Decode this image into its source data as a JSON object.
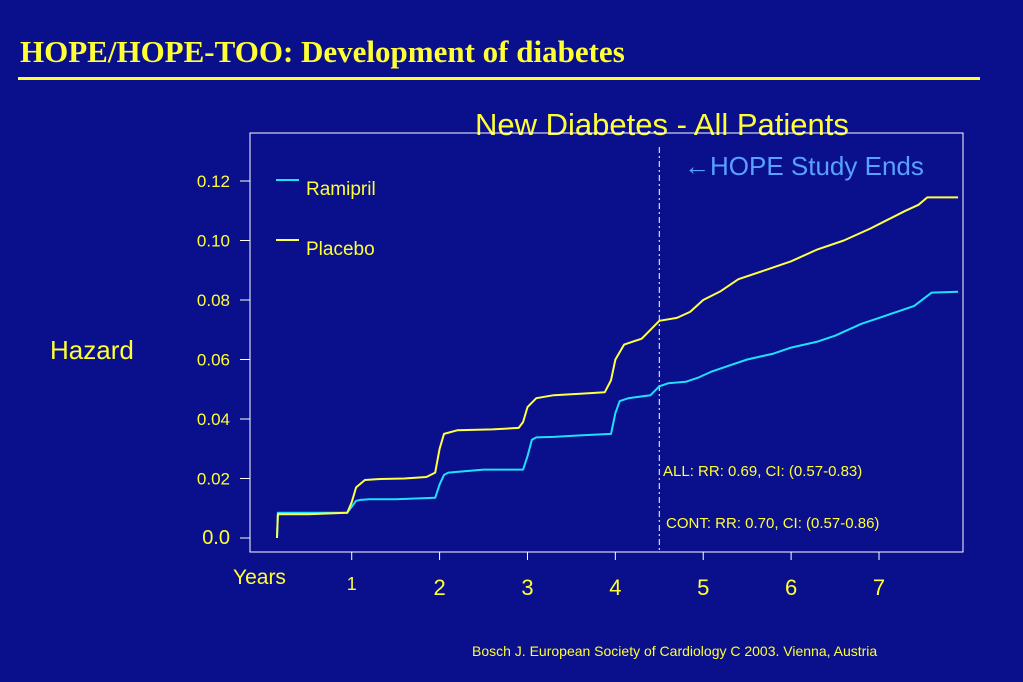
{
  "slide": {
    "title": "HOPE/HOPE-TOO: Development of diabetes",
    "source": "Bosch J. European Society of Cardiology C 2003.  Vienna, Austria",
    "title_color": "#ffff33",
    "background": "#0a0f8c"
  },
  "chart_data": {
    "type": "line",
    "title": "New Diabetes - All Patients",
    "ylabel": "Hazard",
    "xlabel": "Years",
    "xlim": [
      0,
      8
    ],
    "ylim": [
      0,
      0.137
    ],
    "x_ticks": [
      1,
      2,
      3,
      4,
      5,
      6,
      7
    ],
    "x_tick_labels": [
      "1",
      "2",
      "3",
      "4",
      "5",
      "6",
      "7"
    ],
    "y_ticks": [
      0,
      0.02,
      0.04,
      0.06,
      0.08,
      0.1,
      0.12
    ],
    "y_tick_labels": [
      "0.0",
      "0.02",
      "0.04",
      "0.06",
      "0.08",
      "0.10",
      "0.12"
    ],
    "grid": false,
    "legend_position": "top-left",
    "annotation_line": {
      "x": 4.5,
      "label": "←HOPE Study Ends"
    },
    "stats": [
      "ALL: RR: 0.69, CI: (0.57-0.83)",
      "CONT: RR: 0.70, CI: (0.57-0.86)"
    ],
    "series": [
      {
        "name": "Ramipril",
        "color": "#1ee0ff",
        "x": [
          0.15,
          0.16,
          0.5,
          0.95,
          1.0,
          1.05,
          1.1,
          1.2,
          1.5,
          1.95,
          2.0,
          2.05,
          2.1,
          2.3,
          2.5,
          2.95,
          3.0,
          3.05,
          3.1,
          3.3,
          3.6,
          3.95,
          4.0,
          4.05,
          4.15,
          4.4,
          4.5,
          4.6,
          4.8,
          4.95,
          5.1,
          5.3,
          5.5,
          5.8,
          6.0,
          6.3,
          6.5,
          6.8,
          7.0,
          7.2,
          7.4,
          7.6,
          7.9
        ],
        "y": [
          0.0,
          0.0085,
          0.0085,
          0.0085,
          0.0105,
          0.0125,
          0.0128,
          0.013,
          0.013,
          0.0135,
          0.018,
          0.0212,
          0.022,
          0.0225,
          0.023,
          0.023,
          0.0275,
          0.033,
          0.0338,
          0.034,
          0.0345,
          0.035,
          0.042,
          0.046,
          0.047,
          0.048,
          0.051,
          0.052,
          0.0525,
          0.054,
          0.056,
          0.058,
          0.06,
          0.062,
          0.064,
          0.066,
          0.068,
          0.072,
          0.074,
          0.076,
          0.078,
          0.0825,
          0.0828
        ]
      },
      {
        "name": "Placebo",
        "color": "#ffff44",
        "x": [
          0.15,
          0.16,
          0.5,
          0.95,
          1.0,
          1.05,
          1.15,
          1.3,
          1.6,
          1.85,
          1.95,
          2.0,
          2.05,
          2.2,
          2.6,
          2.9,
          2.95,
          3.0,
          3.1,
          3.3,
          3.6,
          3.88,
          3.95,
          4.0,
          4.1,
          4.3,
          4.4,
          4.5,
          4.7,
          4.85,
          5.0,
          5.2,
          5.4,
          5.7,
          6.0,
          6.3,
          6.6,
          6.9,
          7.1,
          7.3,
          7.45,
          7.55,
          7.9
        ],
        "y": [
          0.0,
          0.008,
          0.008,
          0.0085,
          0.012,
          0.017,
          0.0195,
          0.0198,
          0.02,
          0.0205,
          0.022,
          0.03,
          0.035,
          0.0362,
          0.0365,
          0.037,
          0.039,
          0.044,
          0.047,
          0.048,
          0.0485,
          0.049,
          0.053,
          0.06,
          0.065,
          0.067,
          0.07,
          0.073,
          0.074,
          0.076,
          0.08,
          0.083,
          0.087,
          0.09,
          0.093,
          0.097,
          0.1,
          0.104,
          0.107,
          0.11,
          0.112,
          0.1145,
          0.1145
        ]
      }
    ]
  }
}
